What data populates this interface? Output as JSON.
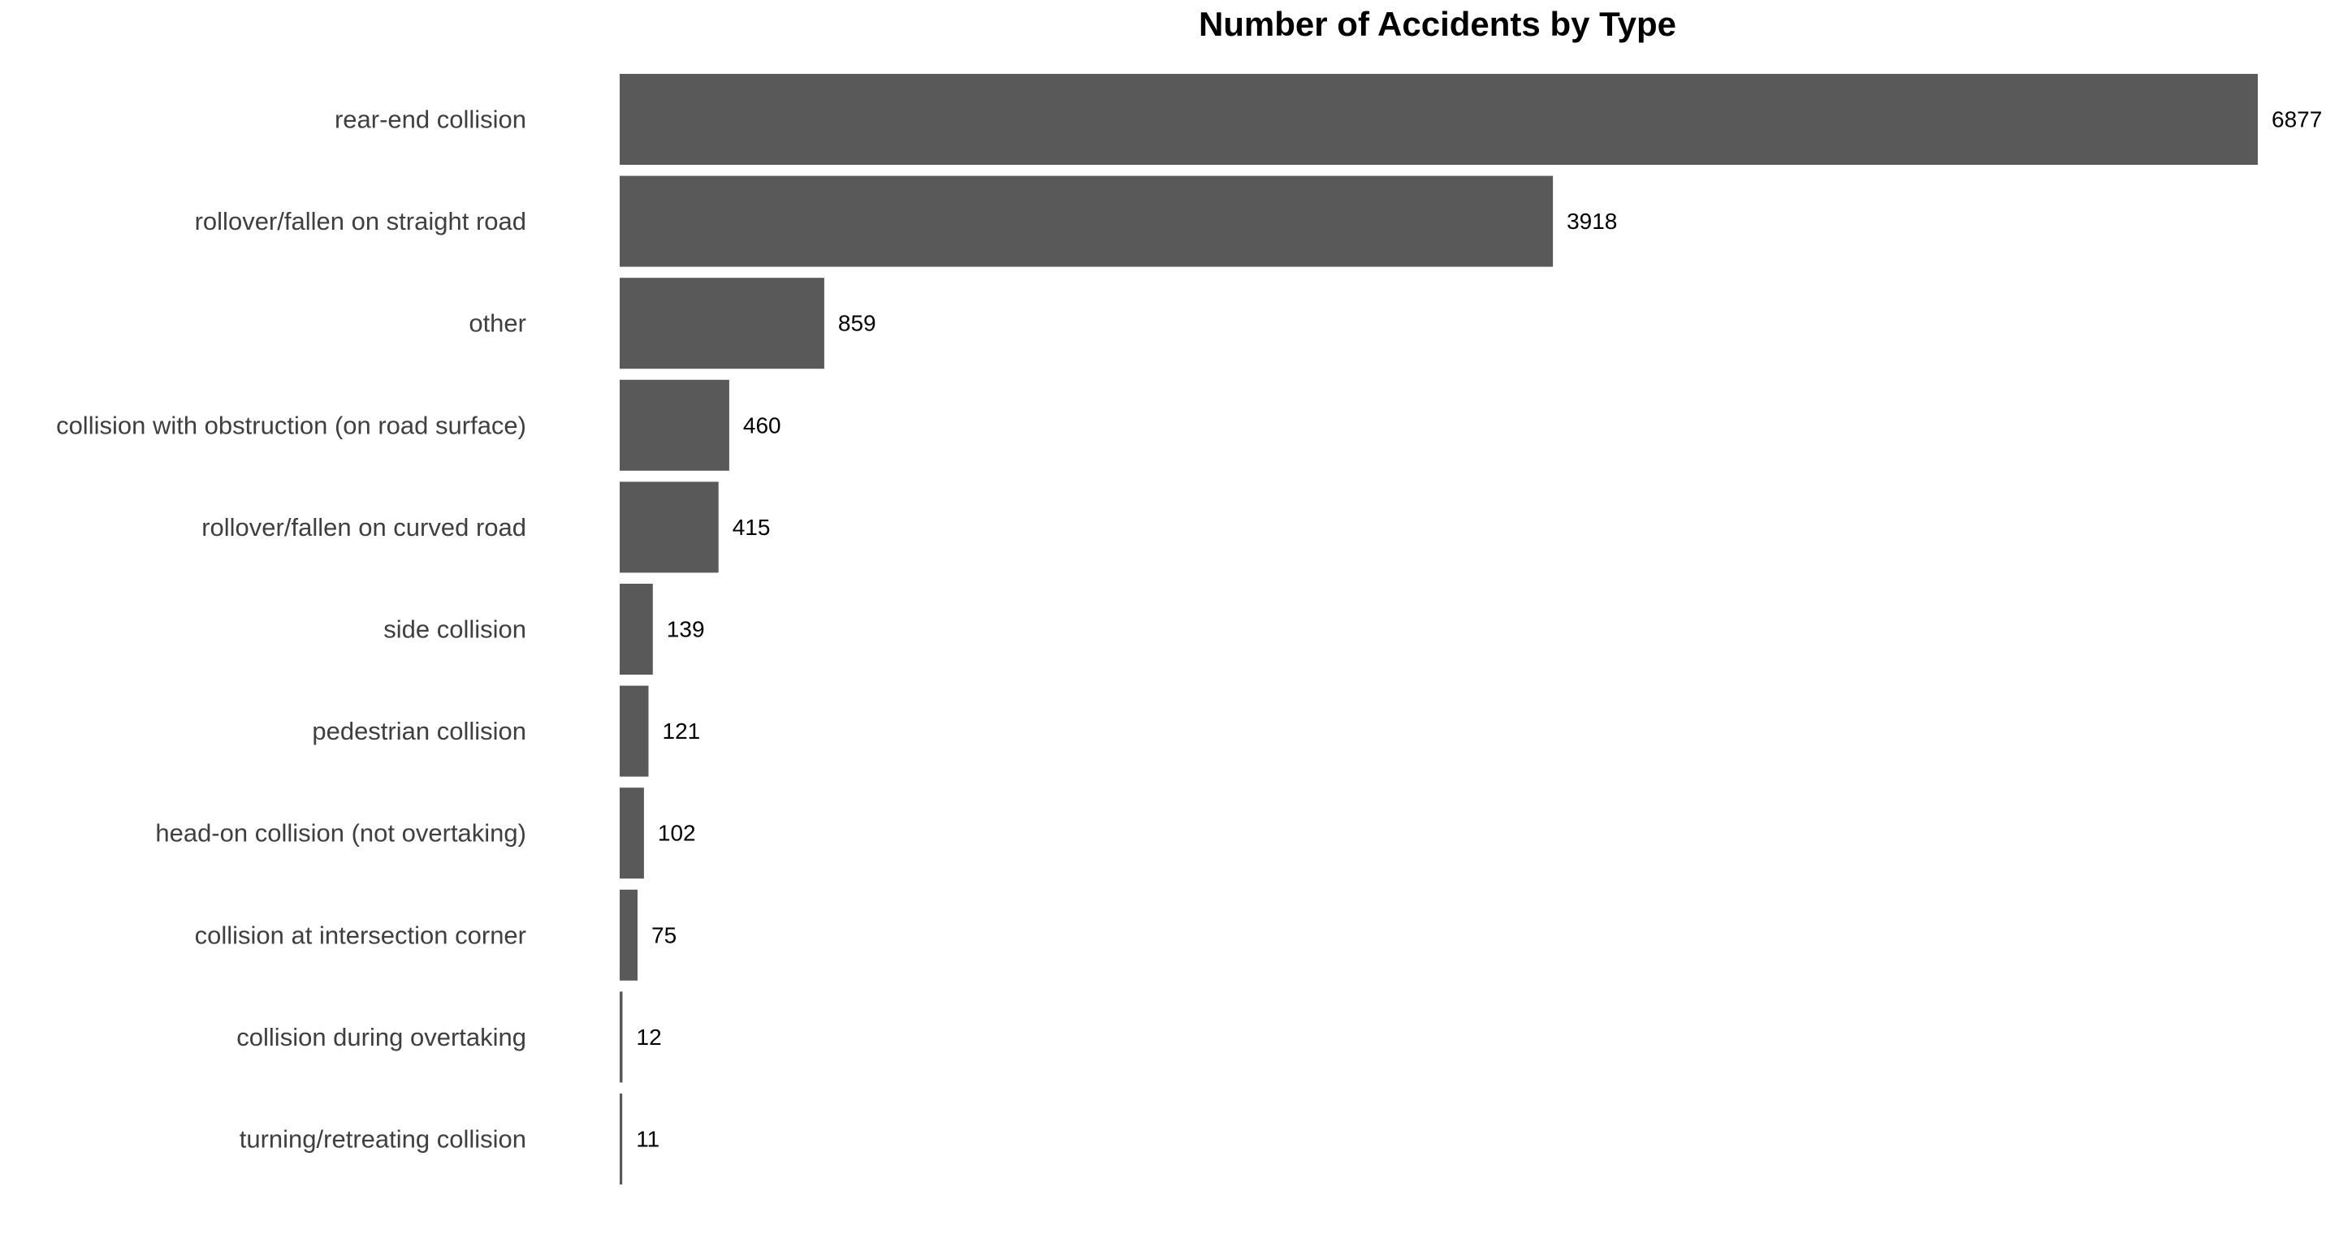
{
  "chart_data": {
    "type": "bar",
    "orientation": "horizontal",
    "title": "Number of Accidents by Type",
    "xlabel": "",
    "ylabel": "",
    "categories": [
      "rear-end collision",
      "rollover/fallen on straight road",
      "other",
      "collision with obstruction (on road surface)",
      "rollover/fallen on curved road",
      "side collision",
      "pedestrian collision",
      "head-on collision (not overtaking)",
      "collision at intersection corner",
      "collision during overtaking",
      "turning/retreating collision"
    ],
    "values": [
      6877,
      3918,
      859,
      460,
      415,
      139,
      121,
      102,
      75,
      12,
      11
    ],
    "xlim": [
      0,
      6877
    ],
    "grid": false,
    "bar_color": "#595959",
    "data_labels": true
  }
}
